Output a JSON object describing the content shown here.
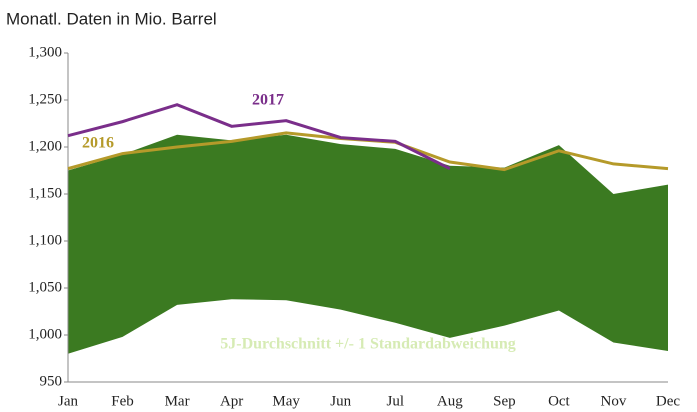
{
  "chart_data": {
    "type": "line",
    "title": "Monatl. Daten in Mio. Barrel",
    "categories": [
      "Jan",
      "Feb",
      "Mar",
      "Apr",
      "May",
      "Jun",
      "Jul",
      "Aug",
      "Sep",
      "Oct",
      "Nov",
      "Dec"
    ],
    "band": {
      "name": "5J-Durchschnitt +/- 1 Standardabweichung",
      "color": "#3b7a21",
      "label_color": "#d6ebb4",
      "upper": [
        1175,
        1192,
        1213,
        1207,
        1213,
        1203,
        1198,
        1180,
        1178,
        1202,
        1150,
        1160
      ],
      "lower": [
        980,
        998,
        1032,
        1038,
        1037,
        1027,
        1013,
        997,
        1010,
        1026,
        992,
        983
      ]
    },
    "series": [
      {
        "name": "2016",
        "color": "#b59a2a",
        "values": [
          1177,
          1193,
          1200,
          1206,
          1215,
          1209,
          1205,
          1184,
          1176,
          1196,
          1182,
          1177
        ]
      },
      {
        "name": "2017",
        "color": "#7a2e8a",
        "values": [
          1212,
          1227,
          1245,
          1222,
          1228,
          1210,
          1206,
          1177,
          null,
          null,
          null,
          null
        ]
      }
    ],
    "ylim": [
      950,
      1300
    ],
    "yticks": [
      950,
      {
        "value": 1000,
        "label": "1,000"
      },
      {
        "value": 1050,
        "label": "1,050"
      },
      {
        "value": 1100,
        "label": "1,100"
      },
      {
        "value": 1150,
        "label": "1,150"
      },
      {
        "value": 1200,
        "label": "1,200"
      },
      {
        "value": 1250,
        "label": "1,250"
      },
      {
        "value": 1300,
        "label": "1,300"
      }
    ],
    "grid": false
  }
}
